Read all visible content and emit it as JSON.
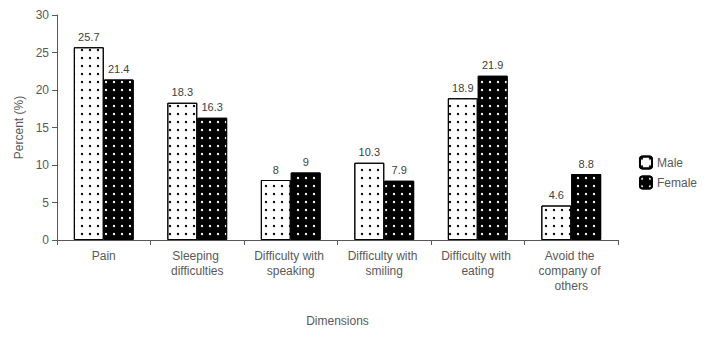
{
  "chart_data": {
    "type": "bar",
    "categories": [
      "Pain",
      "Sleeping difficulties",
      "Difficulty with speaking",
      "Difficulty with smiling",
      "Difficulty with eating",
      "Avoid the company of others"
    ],
    "series": [
      {
        "name": "Male",
        "color": "#ffffff",
        "values": [
          25.7,
          18.3,
          8,
          10.3,
          18.9,
          4.6
        ]
      },
      {
        "name": "Female",
        "color": "#000000",
        "values": [
          21.4,
          16.3,
          9,
          7.9,
          21.9,
          8.8
        ]
      }
    ],
    "x_label": "Dimensions",
    "y_label": "Percent (%)",
    "ylim": [
      0,
      30
    ],
    "yticks": [
      0,
      5,
      10,
      15,
      20,
      25,
      30
    ],
    "grid": false,
    "legend": "right",
    "data_labels": true
  }
}
